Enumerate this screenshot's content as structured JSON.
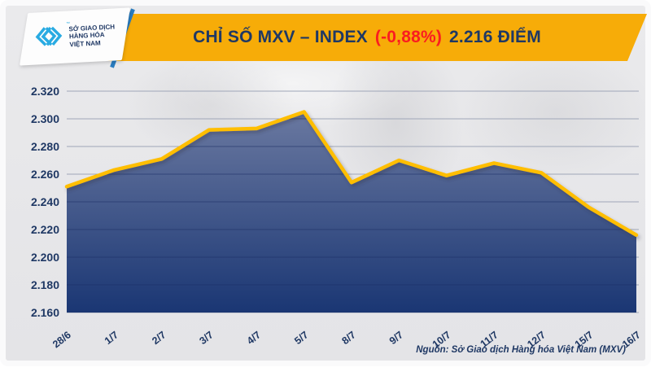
{
  "header": {
    "logo": {
      "line1": "SỞ GIAO DỊCH",
      "line2": "HÀNG HÓA",
      "line3": "VIỆT NAM",
      "trademark": "™"
    },
    "title_main": "CHỈ SỐ MXV – INDEX",
    "title_change": "(-0,88%)",
    "title_value": "2.216 ĐIỂM"
  },
  "chart_data": {
    "type": "area",
    "title": "CHỈ SỐ MXV – INDEX (-0,88%) 2.216 ĐIỂM",
    "categories": [
      "28/6",
      "1/7",
      "2/7",
      "3/7",
      "4/7",
      "5/7",
      "8/7",
      "9/7",
      "10/7",
      "11/7",
      "12/7",
      "15/7",
      "16/7"
    ],
    "values": [
      2251,
      2263,
      2271,
      2292,
      2293,
      2305,
      2254,
      2270,
      2259,
      2268,
      2261,
      2236,
      2216
    ],
    "xlabel": "",
    "ylabel": "",
    "ylim": [
      2160,
      2320
    ],
    "ytick_step": 20,
    "ytick_labels": [
      "2.160",
      "2.180",
      "2.200",
      "2.220",
      "2.240",
      "2.260",
      "2.280",
      "2.300",
      "2.320"
    ],
    "grid": true,
    "legend": "none",
    "line_color": "#FFBE00",
    "area_top_color": "#66759E",
    "area_bottom_color": "#143170",
    "grid_color": "#9FA6B8",
    "inner_grid_color": "#1B2F66",
    "label_color": "#1F3864"
  },
  "footer": {
    "source": "Nguồn: Sở Giao dịch Hàng hóa Việt Nam (MXV)"
  },
  "colors": {
    "banner_yellow": "#F7AC08",
    "navy": "#1F3864",
    "red": "#FA1D20",
    "logo_cyan": "#29ABE2",
    "stripe_blue": "#2A7DC0"
  }
}
